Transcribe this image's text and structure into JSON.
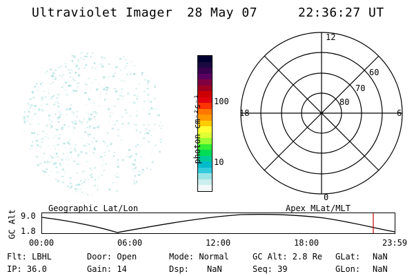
{
  "header": {
    "instrument": "Ultraviolet Imager",
    "date": "28 May 07",
    "time": "22:36:27 UT"
  },
  "colorbar": {
    "unit_label": "photon cm⁻²s⁻¹",
    "ticks": [
      "100",
      "10"
    ],
    "colors": [
      "#000033",
      "#1a0a40",
      "#3a0050",
      "#5a0060",
      "#800040",
      "#a00020",
      "#cc0000",
      "#e00010",
      "#ff3300",
      "#ff7700",
      "#ff9900",
      "#ffcc00",
      "#ffff33",
      "#ddff33",
      "#99ff33",
      "#33ee33",
      "#00dd55",
      "#00cc99",
      "#00bbcc",
      "#33ccdd",
      "#99e5e5",
      "#cceeee",
      "#f2f8f8"
    ],
    "color_meaning": "top = highest flux, bottom = lowest flux"
  },
  "image_panel": {
    "name": "uvi-image",
    "speckle_color": "#aee0e0"
  },
  "polar_grid": {
    "mlt_labels": [
      "12",
      "18",
      "6",
      "0"
    ],
    "mlat_labels": [
      "60",
      "70",
      "80"
    ]
  },
  "orbit_strip": {
    "left_caption": "Geographic Lat/Lon",
    "right_caption": "Apex MLat/MLT",
    "y_label": "GC Alt",
    "y_max": "9.0",
    "y_min": "1.8",
    "x_ticks": [
      "00:00",
      "06:00",
      "12:00",
      "18:00",
      "23:59"
    ],
    "current_time_marker": "22:36",
    "marker_color": "#cc0000"
  },
  "info": {
    "flt": "Flt: LBHL",
    "door": "Door: Open",
    "mode": "Mode: Normal",
    "gcalt": "GC Alt: 2.8 Re",
    "glat_label": "GLat:",
    "glat_value": "NaN",
    "ip": "IP: 36.0",
    "gain": "Gain: 14",
    "dsp_label": "Dsp:",
    "dsp_value": "NaN",
    "seq": "Seq: 39",
    "glon_label": "GLon:",
    "glon_value": "NaN"
  }
}
